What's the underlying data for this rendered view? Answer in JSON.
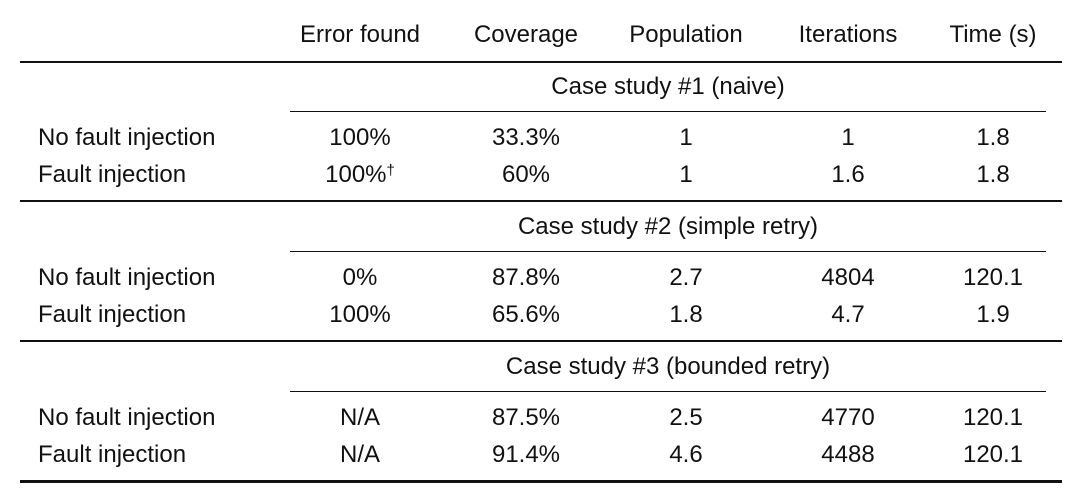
{
  "table": {
    "header": [
      "Error found",
      "Coverage",
      "Population",
      "Iterations",
      "Time (s)"
    ],
    "sections": [
      {
        "title": "Case study #1 (naive)",
        "rows": [
          {
            "label": "No fault injection",
            "cells": [
              "100%",
              "33.3%",
              "1",
              "1",
              "1.8"
            ]
          },
          {
            "label": "Fault injection",
            "cells": [
              "100%",
              "60%",
              "1",
              "1.6",
              "1.8"
            ],
            "note": "†"
          }
        ]
      },
      {
        "title": "Case study #2 (simple retry)",
        "rows": [
          {
            "label": "No fault injection",
            "cells": [
              "0%",
              "87.8%",
              "2.7",
              "4804",
              "120.1"
            ]
          },
          {
            "label": "Fault injection",
            "cells": [
              "100%",
              "65.6%",
              "1.8",
              "4.7",
              "1.9"
            ]
          }
        ]
      },
      {
        "title": "Case study #3 (bounded retry)",
        "rows": [
          {
            "label": "No fault injection",
            "cells": [
              "N/A",
              "87.5%",
              "2.5",
              "4770",
              "120.1"
            ]
          },
          {
            "label": "Fault injection",
            "cells": [
              "N/A",
              "91.4%",
              "4.6",
              "4488",
              "120.1"
            ]
          }
        ]
      }
    ]
  }
}
